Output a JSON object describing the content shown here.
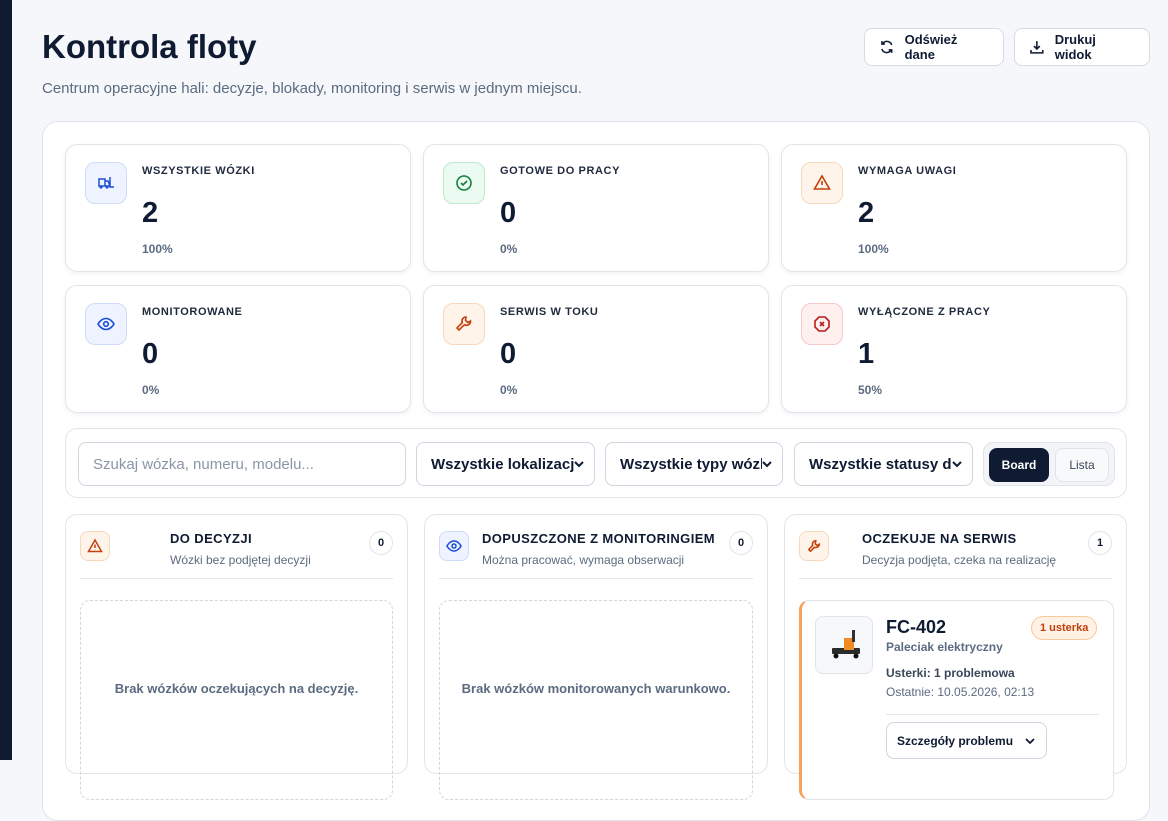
{
  "header": {
    "title": "Kontrola floty",
    "subtitle": "Centrum operacyjne hali: decyzje, blokady, monitoring i serwis w jednym miejscu.",
    "actions": [
      "Odśwież dane",
      "Drukuj widok"
    ]
  },
  "stats": [
    {
      "label": "WSZYSTKIE WÓZKI",
      "value": "2",
      "percent": "100%"
    },
    {
      "label": "GOTOWE DO PRACY",
      "value": "0",
      "percent": "0%"
    },
    {
      "label": "WYMAGA UWAGI",
      "value": "2",
      "percent": "100%"
    },
    {
      "label": "MONITOROWANE",
      "value": "0",
      "percent": "0%"
    },
    {
      "label": "SERWIS W TOKU",
      "value": "0",
      "percent": "0%"
    },
    {
      "label": "WYŁĄCZONE Z PRACY",
      "value": "1",
      "percent": "50%"
    }
  ],
  "filters": {
    "search_placeholder": "Szukaj wózka, numeru, modelu...",
    "selects": [
      "Wszystkie lokalizacje",
      "Wszystkie typy wózków",
      "Wszystkie statusy decyzji"
    ],
    "view_toggle": [
      "Board",
      "Lista"
    ]
  },
  "columns": [
    {
      "title": "DO DECYZJI",
      "subtitle": "Wózki bez podjętej decyzji",
      "count": "0",
      "empty_text": "Brak wózków oczekujących na decyzję."
    },
    {
      "title": "DOPUSZCZONE Z MONITORINGIEM",
      "subtitle": "Można pracować, wymaga obserwacji",
      "count": "0",
      "empty_text": "Brak wózków monitorowanych warunkowo."
    },
    {
      "title": "OCZEKUJE NA SERWIS",
      "subtitle": "Decyzja podjęta, czeka na realizację",
      "count": "1",
      "cards": [
        {
          "id": "FC-402",
          "type": "Paleciak elektryczny",
          "badge": "1 usterka",
          "issues": "Usterki: 1 problemowa",
          "last": "Ostatnie: 10.05.2026, 02:13",
          "details_button": "Szczegóły problemu"
        }
      ]
    }
  ]
}
